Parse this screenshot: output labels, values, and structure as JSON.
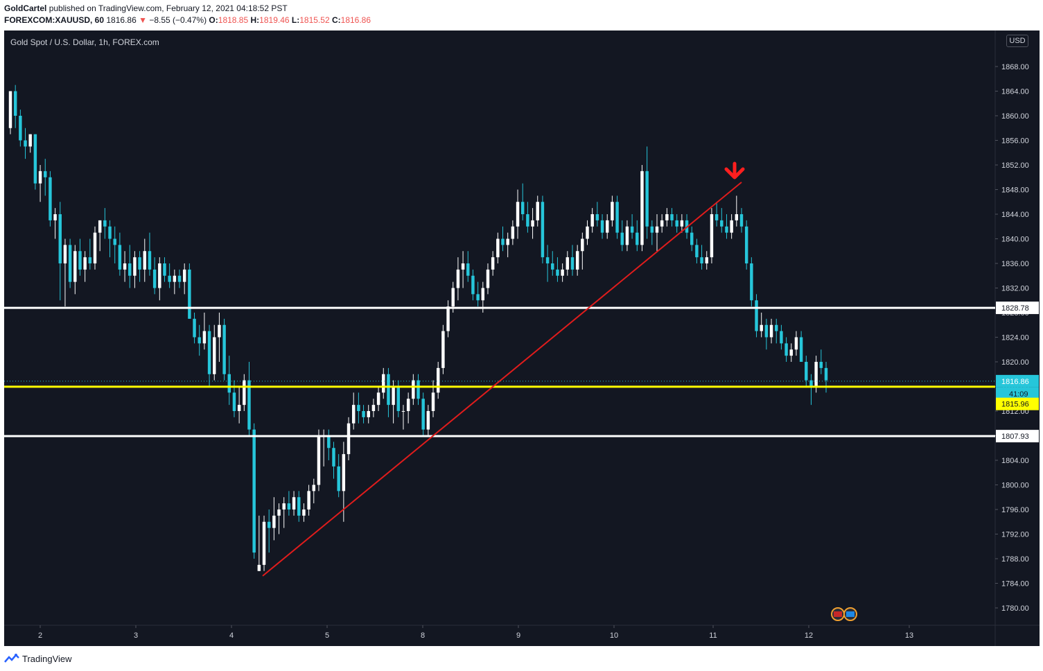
{
  "header": {
    "author": "GoldCartel",
    "published_text": "published on TradingView.com, February 12, 2021 04:18:52 PST",
    "symbol": "FOREXCOM:XAUUSD, 60",
    "last": "1816.86",
    "change": "−8.55 (−0.47%)",
    "o_label": "O:",
    "o": "1818.85",
    "h_label": "H:",
    "h": "1819.46",
    "l_label": "L:",
    "l": "1815.52",
    "c_label": "C:",
    "c": "1816.86"
  },
  "footer": {
    "brand": "TradingView"
  },
  "colors": {
    "bg": "#131722",
    "up": "#ffffff",
    "down": "#26c6da",
    "trend": "#e01c1c",
    "support": "#ffff00",
    "level": "#ffffff"
  },
  "chart_data": {
    "type": "candlestick",
    "title": "Gold Spot / U.S. Dollar, 1h, FOREX.com",
    "currency": "USD",
    "ylim": [
      1776,
      1870
    ],
    "y_ticks": [
      "1868.00",
      "1864.00",
      "1860.00",
      "1856.00",
      "1852.00",
      "1848.00",
      "1844.00",
      "1840.00",
      "1836.00",
      "1832.00",
      "1828.00",
      "1824.00",
      "1820.00",
      "1816.00",
      "1812.00",
      "1808.00",
      "1804.00",
      "1800.00",
      "1796.00",
      "1792.00",
      "1788.00",
      "1784.00",
      "1780.00"
    ],
    "x_ticks": [
      "2",
      "3",
      "4",
      "5",
      "8",
      "9",
      "10",
      "11",
      "12",
      "13"
    ],
    "last_price": "1816.86",
    "countdown": "41:09",
    "horizontal_levels": [
      {
        "price": 1828.78,
        "label": "1828.78",
        "color": "white"
      },
      {
        "price": 1815.96,
        "label": "1815.96",
        "color": "yellow"
      },
      {
        "price": 1807.93,
        "label": "1807.93",
        "color": "white"
      }
    ],
    "trendline": {
      "from": {
        "x": "4",
        "y": 1785.2
      },
      "to": {
        "x": "11",
        "y": 1849.2
      }
    },
    "annotation": "down-arrow",
    "candles_ohlc": [
      [
        1858,
        1864,
        1857,
        1864
      ],
      [
        1864,
        1865,
        1858,
        1860
      ],
      [
        1860,
        1861,
        1855,
        1856
      ],
      [
        1856,
        1858,
        1853,
        1855
      ],
      [
        1855,
        1857,
        1854,
        1857
      ],
      [
        1857,
        1857,
        1848,
        1849
      ],
      [
        1849,
        1852,
        1846,
        1851
      ],
      [
        1851,
        1853,
        1847,
        1850
      ],
      [
        1850,
        1851,
        1842,
        1843
      ],
      [
        1843,
        1845,
        1840,
        1844
      ],
      [
        1844,
        1846,
        1830,
        1836
      ],
      [
        1836,
        1840,
        1829,
        1839
      ],
      [
        1839,
        1840,
        1832,
        1833
      ],
      [
        1833,
        1839,
        1831,
        1838
      ],
      [
        1838,
        1840,
        1834,
        1835
      ],
      [
        1835,
        1838,
        1833,
        1837
      ],
      [
        1837,
        1840,
        1835,
        1836
      ],
      [
        1836,
        1842,
        1835,
        1841
      ],
      [
        1841,
        1843,
        1838,
        1843
      ],
      [
        1843,
        1845,
        1840,
        1842
      ],
      [
        1842,
        1843,
        1837,
        1840
      ],
      [
        1840,
        1842,
        1836,
        1839
      ],
      [
        1839,
        1841,
        1834,
        1835
      ],
      [
        1835,
        1838,
        1833,
        1836
      ],
      [
        1836,
        1839,
        1832,
        1834
      ],
      [
        1834,
        1838,
        1832,
        1837
      ],
      [
        1837,
        1838,
        1833,
        1835
      ],
      [
        1835,
        1840,
        1833,
        1838
      ],
      [
        1838,
        1841,
        1834,
        1835
      ],
      [
        1835,
        1837,
        1831,
        1832
      ],
      [
        1832,
        1837,
        1830,
        1836
      ],
      [
        1836,
        1837,
        1833,
        1834
      ],
      [
        1834,
        1836,
        1832,
        1833
      ],
      [
        1833,
        1835,
        1831,
        1834
      ],
      [
        1834,
        1835,
        1832,
        1833
      ],
      [
        1833,
        1836,
        1831,
        1835
      ],
      [
        1835,
        1836,
        1827,
        1827
      ],
      [
        1827,
        1828,
        1823,
        1824
      ],
      [
        1824,
        1826,
        1821,
        1823
      ],
      [
        1823,
        1828,
        1822,
        1825
      ],
      [
        1825,
        1826,
        1816,
        1818
      ],
      [
        1818,
        1826,
        1817,
        1824
      ],
      [
        1824,
        1828,
        1820,
        1826
      ],
      [
        1826,
        1827,
        1817,
        1818
      ],
      [
        1818,
        1821,
        1813,
        1815
      ],
      [
        1815,
        1817,
        1811,
        1812
      ],
      [
        1812,
        1816,
        1810,
        1813
      ],
      [
        1813,
        1818,
        1812,
        1817
      ],
      [
        1817,
        1820,
        1808,
        1809
      ],
      [
        1809,
        1810,
        1788,
        1789
      ],
      [
        1786,
        1795,
        1786,
        1787
      ],
      [
        1787,
        1795,
        1786,
        1794
      ],
      [
        1794,
        1796,
        1789,
        1793
      ],
      [
        1793,
        1798,
        1791,
        1795
      ],
      [
        1795,
        1797,
        1792,
        1796
      ],
      [
        1796,
        1798,
        1793,
        1797
      ],
      [
        1797,
        1799,
        1795,
        1796
      ],
      [
        1796,
        1799,
        1795,
        1798
      ],
      [
        1798,
        1799,
        1794,
        1795
      ],
      [
        1795,
        1797,
        1794,
        1796
      ],
      [
        1796,
        1800,
        1795,
        1799
      ],
      [
        1799,
        1801,
        1797,
        1800
      ],
      [
        1800,
        1809,
        1799,
        1808
      ],
      [
        1808,
        1809,
        1803,
        1808
      ],
      [
        1808,
        1809,
        1804,
        1806
      ],
      [
        1806,
        1807,
        1801,
        1803
      ],
      [
        1803,
        1805,
        1798,
        1799
      ],
      [
        1799,
        1807,
        1794,
        1805
      ],
      [
        1805,
        1811,
        1804,
        1810
      ],
      [
        1810,
        1815,
        1809,
        1813
      ],
      [
        1813,
        1815,
        1810,
        1812
      ],
      [
        1812,
        1813,
        1810,
        1811
      ],
      [
        1811,
        1813,
        1810,
        1812
      ],
      [
        1812,
        1814,
        1811,
        1813
      ],
      [
        1813,
        1816,
        1812,
        1815
      ],
      [
        1815,
        1819,
        1814,
        1818
      ],
      [
        1818,
        1819,
        1811,
        1813
      ],
      [
        1813,
        1817,
        1810,
        1816
      ],
      [
        1816,
        1817,
        1811,
        1812
      ],
      [
        1812,
        1813,
        1809,
        1812
      ],
      [
        1812,
        1815,
        1810,
        1814
      ],
      [
        1814,
        1818,
        1813,
        1817
      ],
      [
        1817,
        1818,
        1813,
        1814
      ],
      [
        1814,
        1815,
        1808,
        1809
      ],
      [
        1809,
        1813,
        1808,
        1812
      ],
      [
        1812,
        1817,
        1811,
        1815
      ],
      [
        1815,
        1820,
        1814,
        1819
      ],
      [
        1819,
        1826,
        1818,
        1825
      ],
      [
        1825,
        1830,
        1824,
        1829
      ],
      [
        1829,
        1833,
        1828,
        1832
      ],
      [
        1832,
        1837,
        1830,
        1835
      ],
      [
        1835,
        1838,
        1832,
        1836
      ],
      [
        1836,
        1838,
        1833,
        1834
      ],
      [
        1834,
        1835,
        1830,
        1831
      ],
      [
        1831,
        1833,
        1829,
        1830
      ],
      [
        1830,
        1833,
        1828,
        1832
      ],
      [
        1832,
        1836,
        1831,
        1835
      ],
      [
        1835,
        1838,
        1834,
        1837
      ],
      [
        1837,
        1841,
        1836,
        1840
      ],
      [
        1840,
        1842,
        1838,
        1839
      ],
      [
        1839,
        1841,
        1837,
        1840
      ],
      [
        1840,
        1843,
        1839,
        1842
      ],
      [
        1842,
        1848,
        1840,
        1846
      ],
      [
        1846,
        1849,
        1843,
        1844
      ],
      [
        1844,
        1846,
        1841,
        1842
      ],
      [
        1842,
        1845,
        1840,
        1843
      ],
      [
        1843,
        1847,
        1842,
        1846
      ],
      [
        1846,
        1847,
        1836,
        1837
      ],
      [
        1837,
        1839,
        1833,
        1836
      ],
      [
        1836,
        1838,
        1834,
        1835
      ],
      [
        1835,
        1837,
        1833,
        1834
      ],
      [
        1834,
        1836,
        1833,
        1835
      ],
      [
        1835,
        1838,
        1834,
        1837
      ],
      [
        1837,
        1839,
        1834,
        1835
      ],
      [
        1835,
        1839,
        1834,
        1838
      ],
      [
        1838,
        1841,
        1835,
        1840
      ],
      [
        1840,
        1843,
        1839,
        1842
      ],
      [
        1842,
        1845,
        1841,
        1844
      ],
      [
        1844,
        1846,
        1842,
        1843
      ],
      [
        1843,
        1844,
        1840,
        1841
      ],
      [
        1841,
        1844,
        1840,
        1843
      ],
      [
        1843,
        1847,
        1842,
        1846
      ],
      [
        1846,
        1847,
        1840,
        1841
      ],
      [
        1841,
        1843,
        1838,
        1839
      ],
      [
        1839,
        1843,
        1838,
        1842
      ],
      [
        1842,
        1844,
        1840,
        1841
      ],
      [
        1841,
        1843,
        1838,
        1839
      ],
      [
        1839,
        1852,
        1838,
        1851
      ],
      [
        1851,
        1855,
        1840,
        1842
      ],
      [
        1842,
        1843,
        1839,
        1841
      ],
      [
        1841,
        1844,
        1838,
        1842
      ],
      [
        1842,
        1844,
        1841,
        1843
      ],
      [
        1843,
        1845,
        1842,
        1844
      ],
      [
        1844,
        1845,
        1842,
        1843
      ],
      [
        1843,
        1844,
        1841,
        1842
      ],
      [
        1842,
        1844,
        1841,
        1843
      ],
      [
        1843,
        1844,
        1840,
        1841
      ],
      [
        1841,
        1842,
        1838,
        1839
      ],
      [
        1839,
        1840,
        1836,
        1837
      ],
      [
        1837,
        1839,
        1835,
        1836
      ],
      [
        1836,
        1838,
        1835,
        1837
      ],
      [
        1837,
        1845,
        1836,
        1844
      ],
      [
        1844,
        1846,
        1842,
        1843
      ],
      [
        1843,
        1845,
        1841,
        1842
      ],
      [
        1842,
        1844,
        1840,
        1841
      ],
      [
        1841,
        1844,
        1840,
        1843
      ],
      [
        1843,
        1847,
        1842,
        1844
      ],
      [
        1844,
        1845,
        1841,
        1842
      ],
      [
        1842,
        1843,
        1835,
        1836
      ],
      [
        1836,
        1837,
        1829,
        1830
      ],
      [
        1830,
        1831,
        1824,
        1825
      ],
      [
        1825,
        1828,
        1824,
        1826
      ],
      [
        1826,
        1827,
        1822,
        1824
      ],
      [
        1824,
        1827,
        1823,
        1826
      ],
      [
        1826,
        1827,
        1823,
        1825
      ],
      [
        1825,
        1826,
        1822,
        1823
      ],
      [
        1823,
        1824,
        1820,
        1821
      ],
      [
        1821,
        1823,
        1820,
        1822
      ],
      [
        1822,
        1825,
        1821,
        1824
      ],
      [
        1824,
        1825,
        1820,
        1820
      ],
      [
        1820,
        1821,
        1816,
        1817
      ],
      [
        1817,
        1818,
        1813,
        1816
      ],
      [
        1816,
        1821,
        1815,
        1820
      ],
      [
        1820,
        1822,
        1818,
        1819
      ],
      [
        1819,
        1820,
        1815,
        1817
      ]
    ]
  }
}
